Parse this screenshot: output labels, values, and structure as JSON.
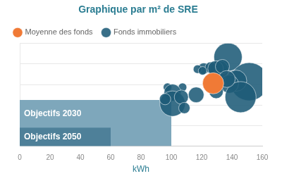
{
  "chart_data": {
    "type": "bubble",
    "title": "Graphique par m² de SRE",
    "x_label": "kWh",
    "xlim": [
      0,
      160
    ],
    "xticks": [
      0,
      20,
      40,
      60,
      80,
      100,
      120,
      140,
      160
    ],
    "ylim": [
      0,
      5
    ],
    "yticks": [
      0,
      1,
      2,
      3,
      4,
      5
    ],
    "tick_labels": "x",
    "grid": true,
    "legend": "top-left",
    "series": [
      {
        "name": "Fonds immobiliers",
        "color": "#1e5b78",
        "x": [
          137.4,
          131.7,
          121.4,
          126.0,
          129.2,
          133.7,
          117.3,
          120.6,
          151.4,
          142.8,
          138.3,
          145.7,
          129.6,
          116.4,
          107.4,
          97.5,
          100.8,
          100.8,
          106.6,
          95.9,
          108.6,
          136.6
        ],
        "values": [
          4.34,
          3.72,
          3.78,
          3.83,
          3.78,
          3.88,
          3.75,
          3.67,
          3.14,
          3.19,
          3.03,
          2.39,
          2.66,
          2.5,
          2.87,
          2.87,
          2.61,
          2.07,
          2.39,
          2.29,
          1.86,
          3.27
        ],
        "sizes": [
          20,
          13,
          8,
          8,
          11,
          10,
          6,
          6,
          27,
          15,
          13,
          22,
          10,
          11,
          6,
          6,
          12,
          18,
          10,
          8,
          8,
          12
        ]
      },
      {
        "name": "Moyenne des fonds",
        "color": "#f07a36",
        "x": [
          127.6
        ],
        "values": [
          3.06
        ],
        "sizes": [
          15
        ]
      }
    ],
    "annotations": [
      {
        "text": "Objectifs 2030",
        "x": 100
      },
      {
        "text": "Objectifs 2050",
        "x": 60
      }
    ]
  }
}
